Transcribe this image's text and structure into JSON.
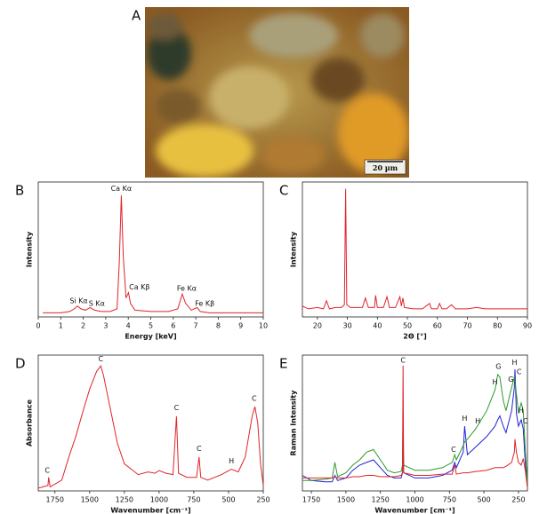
{
  "figure": {
    "photo_label": "A",
    "scale_bar": "20 µm"
  },
  "chart_data": [
    {
      "type": "line",
      "panel": "B",
      "x_label": "Energy [keV]",
      "y_label": "Intensity",
      "xlim": [
        0,
        10
      ],
      "xticks": [
        0,
        1,
        2,
        3,
        4,
        5,
        6,
        7,
        8,
        9,
        10
      ],
      "ylim": [
        0,
        100
      ],
      "x": [
        0.2,
        0.5,
        1.0,
        1.4,
        1.6,
        1.74,
        1.9,
        2.1,
        2.3,
        2.5,
        2.8,
        3.2,
        3.5,
        3.6,
        3.69,
        3.78,
        3.9,
        4.01,
        4.1,
        4.3,
        5.0,
        5.8,
        6.2,
        6.4,
        6.55,
        6.8,
        7.06,
        7.2,
        7.6,
        8.5,
        10
      ],
      "series": [
        {
          "color": "#e0242a",
          "values": [
            3,
            3,
            3,
            4,
            6,
            8,
            6,
            5,
            7,
            5,
            4,
            4,
            6,
            40,
            90,
            45,
            14,
            18,
            10,
            5,
            4,
            4,
            6,
            17,
            10,
            5,
            7,
            4,
            3,
            3,
            3
          ]
        }
      ],
      "annotations": [
        {
          "text": "Ca Kα",
          "x": 3.69,
          "y": 95
        },
        {
          "text": "Ca Kβ",
          "x": 4.5,
          "y": 22
        },
        {
          "text": "Si Kα",
          "x": 1.8,
          "y": 12
        },
        {
          "text": "S Kα",
          "x": 2.6,
          "y": 10
        },
        {
          "text": "Fe Kα",
          "x": 6.6,
          "y": 21
        },
        {
          "text": "Fe Kβ",
          "x": 7.4,
          "y": 10
        }
      ]
    },
    {
      "type": "line",
      "panel": "C",
      "x_label": "2Θ [°]",
      "y_label": "Intensity",
      "xlim": [
        15,
        90
      ],
      "xticks": [
        20,
        30,
        40,
        50,
        60,
        70,
        80,
        90
      ],
      "ylim": [
        0,
        100
      ],
      "x": [
        15,
        17,
        20,
        22,
        23,
        24,
        26,
        28,
        29,
        29.4,
        29.8,
        31,
        33,
        35,
        36,
        37,
        39,
        39.4,
        40,
        42,
        43.2,
        44,
        46,
        47.5,
        48,
        48.5,
        49,
        52,
        55,
        57.4,
        58,
        60,
        60.7,
        61.5,
        63,
        64.7,
        66,
        70,
        73,
        76,
        80,
        84,
        88,
        90
      ],
      "series": [
        {
          "color": "#e0242a",
          "values": [
            8,
            6,
            7,
            6,
            12,
            6,
            7,
            7,
            9,
            95,
            9,
            7,
            7,
            7,
            14,
            7,
            7,
            16,
            7,
            7,
            15,
            7,
            7,
            15,
            8,
            14,
            7,
            6,
            6,
            10,
            6,
            6,
            10,
            6,
            6,
            9,
            6,
            6,
            7,
            6,
            6,
            6,
            6,
            6
          ]
        }
      ],
      "annotations": []
    },
    {
      "type": "line",
      "panel": "D",
      "x_label": "Wavenumber [cm⁻¹]",
      "y_label": "Absorbance",
      "xlim": [
        1870,
        250
      ],
      "xticks": [
        1750,
        1500,
        1250,
        1000,
        750,
        500,
        250
      ],
      "ylim": [
        0,
        100
      ],
      "x": [
        1870,
        1800,
        1795,
        1785,
        1700,
        1650,
        1600,
        1550,
        1500,
        1450,
        1420,
        1400,
        1350,
        1300,
        1250,
        1150,
        1080,
        1030,
        1000,
        950,
        900,
        875,
        860,
        800,
        730,
        712,
        700,
        650,
        550,
        480,
        430,
        380,
        330,
        310,
        290,
        270,
        250
      ],
      "series": [
        {
          "color": "#e0242a",
          "values": [
            2,
            4,
            10,
            3,
            8,
            25,
            40,
            58,
            75,
            88,
            92,
            85,
            60,
            35,
            20,
            12,
            14,
            13,
            15,
            13,
            12,
            55,
            13,
            10,
            10,
            25,
            10,
            8,
            12,
            16,
            14,
            25,
            55,
            62,
            50,
            20,
            4
          ]
        }
      ],
      "annotations": [
        {
          "text": "C",
          "x": 1420,
          "y": 97
        },
        {
          "text": "C",
          "x": 875,
          "y": 61
        },
        {
          "text": "C",
          "x": 712,
          "y": 31
        },
        {
          "text": "H",
          "x": 480,
          "y": 22
        },
        {
          "text": "C",
          "x": 315,
          "y": 68
        },
        {
          "text": "C",
          "x": 1805,
          "y": 15
        }
      ]
    },
    {
      "type": "line",
      "panel": "E",
      "x_label": "Wavenumber [cm⁻¹]",
      "y_label": "Raman Intensity",
      "xlim": [
        1815,
        185
      ],
      "xticks": [
        1750,
        1500,
        1250,
        1000,
        750,
        500,
        250
      ],
      "ylim": [
        0,
        105
      ],
      "x": [
        1815,
        1750,
        1650,
        1600,
        1580,
        1560,
        1500,
        1450,
        1400,
        1350,
        1300,
        1250,
        1200,
        1150,
        1100,
        1090,
        1086,
        1082,
        1000,
        900,
        800,
        730,
        712,
        700,
        650,
        640,
        620,
        560,
        480,
        420,
        400,
        385,
        360,
        340,
        300,
        280,
        275,
        265,
        250,
        230,
        215,
        200,
        185
      ],
      "series": [
        {
          "color": "#2020d8",
          "values": [
            12,
            8,
            7,
            7,
            12,
            8,
            10,
            16,
            20,
            22,
            24,
            18,
            12,
            10,
            10,
            14,
            50,
            14,
            10,
            10,
            12,
            16,
            22,
            18,
            30,
            50,
            28,
            34,
            42,
            50,
            55,
            58,
            50,
            45,
            62,
            80,
            94,
            60,
            50,
            55,
            48,
            20,
            4
          ]
        },
        {
          "color": "#2a9a2a",
          "values": [
            8,
            8,
            9,
            10,
            22,
            11,
            14,
            20,
            24,
            30,
            32,
            24,
            16,
            14,
            15,
            20,
            60,
            20,
            16,
            16,
            18,
            22,
            28,
            24,
            35,
            38,
            40,
            48,
            62,
            78,
            90,
            88,
            70,
            62,
            80,
            88,
            85,
            75,
            60,
            68,
            62,
            30,
            5
          ]
        },
        {
          "color": "#e0242a",
          "values": [
            10,
            10,
            10,
            10,
            11,
            10,
            10,
            11,
            11,
            12,
            12,
            11,
            11,
            11,
            12,
            14,
            97,
            14,
            12,
            12,
            13,
            13,
            20,
            13,
            14,
            14,
            14,
            15,
            16,
            18,
            18,
            18,
            18,
            19,
            22,
            30,
            40,
            30,
            22,
            20,
            25,
            15,
            2
          ]
        }
      ],
      "annotations": [
        {
          "text": "C",
          "x": 1086,
          "y": 101
        },
        {
          "text": "C",
          "x": 720,
          "y": 32
        },
        {
          "text": "H",
          "x": 640,
          "y": 56
        },
        {
          "text": "H",
          "x": 545,
          "y": 54
        },
        {
          "text": "H",
          "x": 420,
          "y": 84
        },
        {
          "text": "G",
          "x": 395,
          "y": 96
        },
        {
          "text": "G",
          "x": 305,
          "y": 86
        },
        {
          "text": "H",
          "x": 278,
          "y": 99
        },
        {
          "text": "C",
          "x": 245,
          "y": 92
        },
        {
          "text": "H",
          "x": 232,
          "y": 62
        },
        {
          "text": "C",
          "x": 200,
          "y": 54
        }
      ]
    }
  ]
}
